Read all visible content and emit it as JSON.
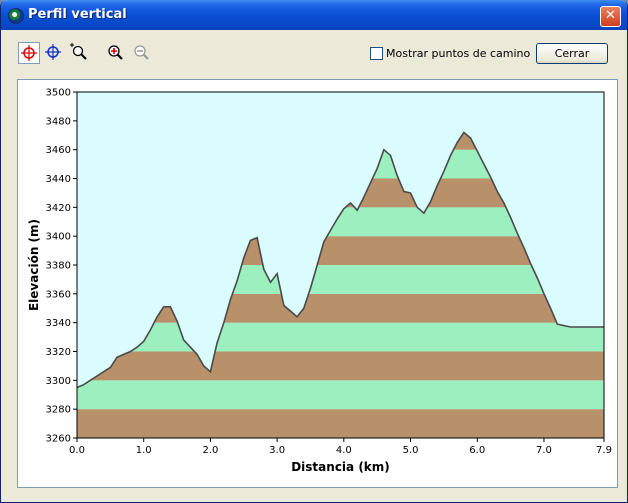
{
  "window": {
    "title": "Perfil vertical",
    "close_glyph": "✕"
  },
  "toolbar": {
    "tools": [
      "crosshair-red-icon",
      "crosshair-blue-icon",
      "zoom-box-icon",
      "zoom-in-icon",
      "zoom-out-icon"
    ],
    "show_waypoints_label": "Mostrar puntos de camino",
    "show_waypoints_checked": false,
    "close_label": "Cerrar"
  },
  "colors": {
    "band_brown": "#b8906a",
    "band_green": "#9cefbf",
    "sky": "#dafcff",
    "line": "#4a4a4a"
  },
  "chart_data": {
    "type": "area",
    "xlabel": "Distancia  (km)",
    "ylabel": "Elevación (m)",
    "xlim": [
      0,
      7.9
    ],
    "ylim": [
      3260,
      3500
    ],
    "xticks": [
      "0.0",
      "1.0",
      "2.0",
      "3.0",
      "4.0",
      "5.0",
      "6.0",
      "7.0",
      "7.9"
    ],
    "yticks": [
      "3260",
      "3280",
      "3300",
      "3320",
      "3340",
      "3360",
      "3380",
      "3400",
      "3420",
      "3440",
      "3460",
      "3480",
      "3500"
    ],
    "x": [
      0.0,
      0.1,
      0.2,
      0.3,
      0.4,
      0.5,
      0.6,
      0.7,
      0.8,
      0.9,
      1.0,
      1.1,
      1.2,
      1.3,
      1.4,
      1.5,
      1.6,
      1.7,
      1.8,
      1.9,
      2.0,
      2.1,
      2.2,
      2.3,
      2.4,
      2.5,
      2.6,
      2.7,
      2.8,
      2.9,
      3.0,
      3.1,
      3.2,
      3.3,
      3.4,
      3.5,
      3.6,
      3.7,
      3.8,
      3.9,
      4.0,
      4.1,
      4.2,
      4.3,
      4.4,
      4.5,
      4.6,
      4.7,
      4.8,
      4.9,
      5.0,
      5.1,
      5.2,
      5.3,
      5.4,
      5.5,
      5.6,
      5.7,
      5.8,
      5.9,
      6.0,
      6.1,
      6.2,
      6.3,
      6.4,
      6.5,
      6.6,
      6.7,
      6.8,
      6.9,
      7.0,
      7.1,
      7.2,
      7.3,
      7.4,
      7.5,
      7.6,
      7.7,
      7.8,
      7.9
    ],
    "y": [
      3295,
      3297,
      3300,
      3303,
      3306,
      3309,
      3316,
      3318,
      3320,
      3323,
      3327,
      3335,
      3344,
      3351,
      3351,
      3341,
      3328,
      3323,
      3318,
      3310,
      3306,
      3326,
      3340,
      3356,
      3369,
      3385,
      3397,
      3399,
      3377,
      3368,
      3374,
      3352,
      3348,
      3344,
      3350,
      3364,
      3380,
      3396,
      3404,
      3412,
      3419,
      3423,
      3418,
      3427,
      3437,
      3447,
      3460,
      3456,
      3442,
      3431,
      3430,
      3420,
      3416,
      3424,
      3435,
      3445,
      3456,
      3465,
      3472,
      3468,
      3459,
      3450,
      3441,
      3431,
      3423,
      3413,
      3402,
      3392,
      3381,
      3371,
      3360,
      3350,
      3339,
      3338,
      3337,
      3337,
      3337,
      3337,
      3337,
      3337
    ],
    "grid": false,
    "legend": "none"
  }
}
